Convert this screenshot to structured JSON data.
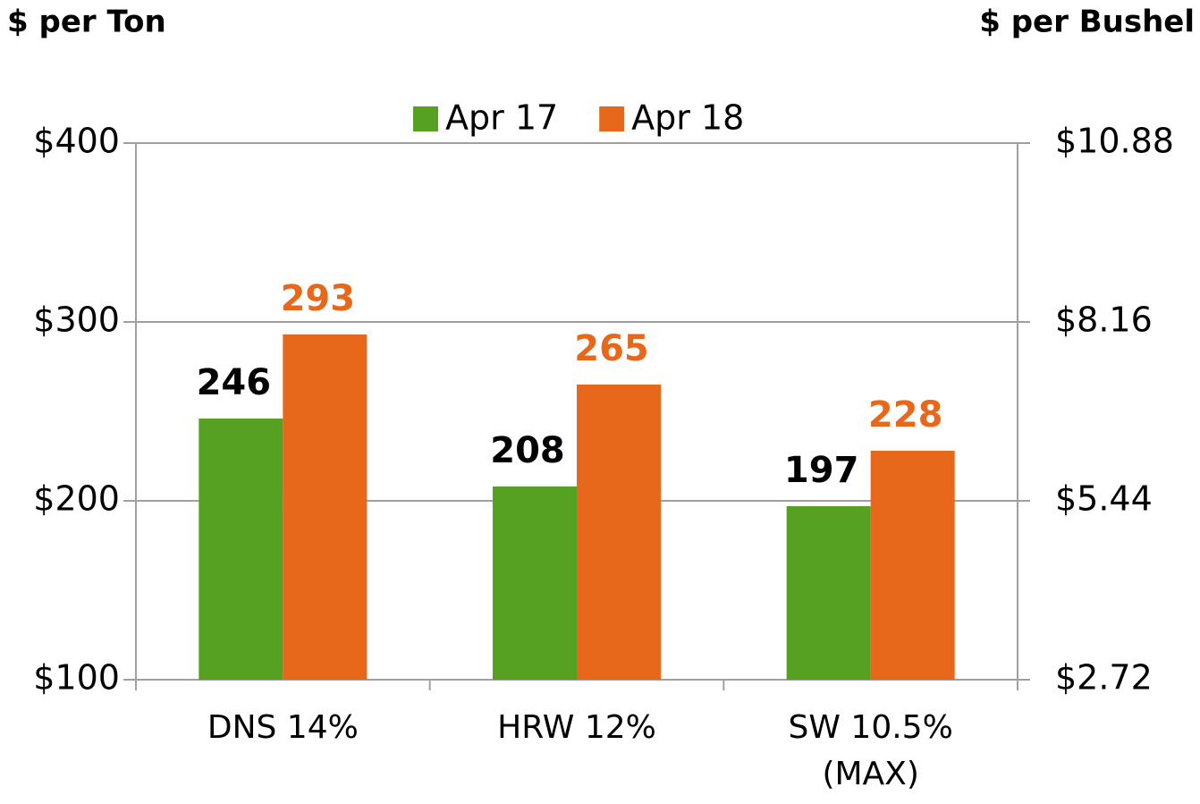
{
  "chart_data": {
    "type": "bar",
    "ylabel": "$ per Ton",
    "y2label": "$ per Bushel",
    "categories": [
      "DNS 14%",
      "HRW 12%",
      "SW 10.5%\n(MAX)"
    ],
    "series": [
      {
        "name": "Apr 17",
        "color": "#56a022",
        "label_color": "#000000",
        "values": [
          246,
          208,
          197
        ]
      },
      {
        "name": "Apr 18",
        "color": "#e8681b",
        "label_color": "#e8681b",
        "values": [
          293,
          265,
          228
        ]
      }
    ],
    "ylim": [
      100,
      400
    ],
    "yticks": [
      {
        "value": 100,
        "label": "$100"
      },
      {
        "value": 200,
        "label": "$200"
      },
      {
        "value": 300,
        "label": "$300"
      },
      {
        "value": 400,
        "label": "$400"
      }
    ],
    "y2lim": [
      2.72,
      10.88
    ],
    "y2ticks": [
      {
        "value": 2.72,
        "label": "$2.72"
      },
      {
        "value": 5.44,
        "label": "$5.44"
      },
      {
        "value": 8.16,
        "label": "$8.16"
      },
      {
        "value": 10.88,
        "label": "$10.88"
      }
    ],
    "grid": true,
    "legend": "top"
  }
}
